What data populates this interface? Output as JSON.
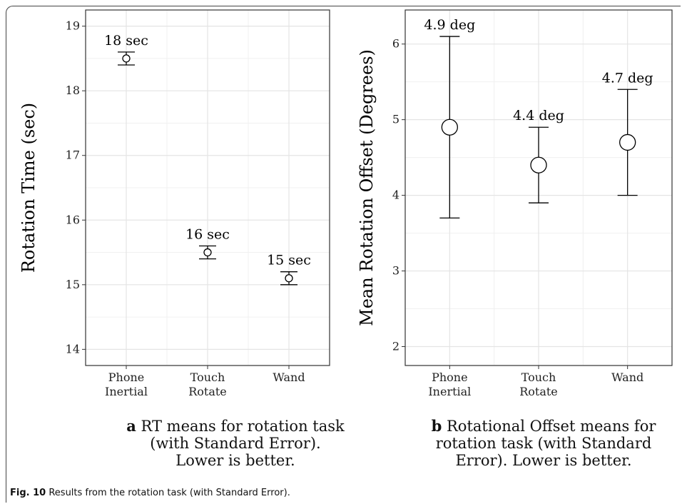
{
  "figure": {
    "label": "Fig. 10",
    "caption": "Results from the rotation task (with Standard Error)."
  },
  "panels": [
    {
      "letter": "a",
      "caption_line1": "RT means for rotation task",
      "caption_line2": "(with Standard Error).",
      "caption_line3": "Lower is better."
    },
    {
      "letter": "b",
      "caption_line1": "Rotational Offset means for",
      "caption_line2": "rotation task (with Standard",
      "caption_line3": "Error). Lower is better."
    }
  ],
  "chart_data": [
    {
      "type": "scatter",
      "subtype": "point-with-error-bars",
      "title": "",
      "xlabel": "",
      "ylabel": "Rotation Time (sec)",
      "categories": [
        [
          "Phone",
          "Inertial"
        ],
        [
          "Touch",
          "Rotate"
        ],
        [
          "Wand"
        ]
      ],
      "values": [
        18.5,
        15.5,
        15.1
      ],
      "error_low": [
        18.4,
        15.4,
        15.0
      ],
      "error_high": [
        18.6,
        15.6,
        15.2
      ],
      "data_labels": [
        "18 sec",
        "16 sec",
        "15 sec"
      ],
      "yticks": [
        14,
        15,
        16,
        17,
        18,
        19
      ],
      "ylim": [
        13.75,
        19.25
      ],
      "grid": true,
      "point_size": "small"
    },
    {
      "type": "scatter",
      "subtype": "point-with-error-bars",
      "title": "",
      "xlabel": "",
      "ylabel": "Mean Rotation Offset (Degrees)",
      "categories": [
        [
          "Phone",
          "Inertial"
        ],
        [
          "Touch",
          "Rotate"
        ],
        [
          "Wand"
        ]
      ],
      "values": [
        4.9,
        4.4,
        4.7
      ],
      "error_low": [
        3.7,
        3.9,
        4.0
      ],
      "error_high": [
        6.1,
        4.9,
        5.4
      ],
      "data_labels": [
        "4.9 deg",
        "4.4 deg",
        "4.7 deg"
      ],
      "yticks": [
        2,
        3,
        4,
        5,
        6
      ],
      "ylim": [
        1.75,
        6.45
      ],
      "grid": true,
      "point_size": "large"
    }
  ]
}
